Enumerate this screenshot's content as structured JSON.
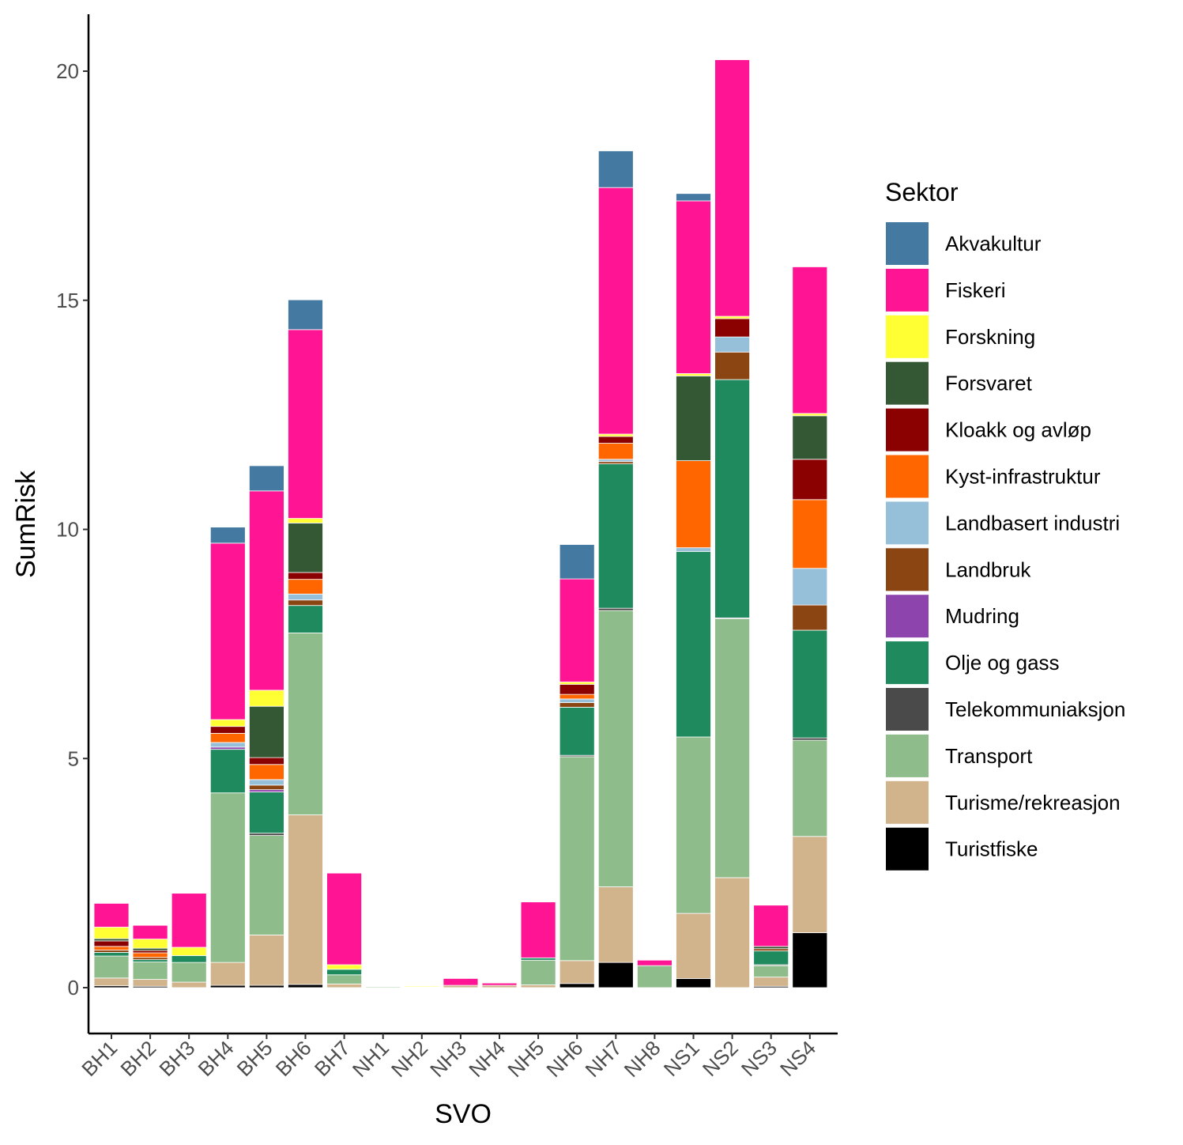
{
  "chart_data": {
    "type": "bar",
    "stacked": true,
    "title": "",
    "xlabel": "SVO",
    "ylabel": "SumRisk",
    "ylim": [
      -1,
      21.2
    ],
    "yticks": [
      0,
      5,
      10,
      15,
      20
    ],
    "legend_title": "Sektor",
    "legend_position": "right",
    "grid": false,
    "categories": [
      "BH1",
      "BH2",
      "BH3",
      "BH4",
      "BH5",
      "BH6",
      "BH7",
      "NH1",
      "NH2",
      "NH3",
      "NH4",
      "NH5",
      "NH6",
      "NH7",
      "NH8",
      "NS1",
      "NS2",
      "NS3",
      "NS4"
    ],
    "series": [
      {
        "name": "Akvakultur",
        "color": "#4479A2",
        "values": [
          0,
          0,
          0,
          0.35,
          0.55,
          0.65,
          0,
          0,
          0,
          0,
          0,
          0,
          0.75,
          0.8,
          0,
          0.16,
          0,
          0,
          0
        ]
      },
      {
        "name": "Fiskeri",
        "color": "#FF1493",
        "values": [
          0.52,
          0.3,
          1.18,
          3.85,
          4.35,
          4.12,
          2.0,
          0,
          0,
          0.15,
          0.05,
          1.22,
          2.25,
          5.38,
          0.12,
          3.77,
          5.6,
          0.9,
          3.2
        ]
      },
      {
        "name": "Forskning",
        "color": "#FFFF33",
        "values": [
          0.25,
          0.2,
          0.18,
          0.15,
          0.35,
          0.1,
          0.1,
          0,
          0.02,
          0,
          0,
          0,
          0.05,
          0.05,
          0,
          0.05,
          0.05,
          0,
          0.05
        ]
      },
      {
        "name": "Forsvaret",
        "color": "#355834",
        "values": [
          0.05,
          0.05,
          0,
          0,
          1.12,
          1.08,
          0,
          0,
          0,
          0,
          0,
          0,
          0,
          0,
          0,
          1.85,
          0,
          0.05,
          0.95
        ]
      },
      {
        "name": "Kloakk og avløp",
        "color": "#8B0000",
        "values": [
          0.12,
          0.05,
          0,
          0.15,
          0.15,
          0.15,
          0,
          0,
          0,
          0,
          0,
          0,
          0.22,
          0.15,
          0,
          0,
          0.4,
          0,
          0.88
        ]
      },
      {
        "name": "Kyst-infrastruktur",
        "color": "#FF6600",
        "values": [
          0.08,
          0.1,
          0,
          0.2,
          0.33,
          0.32,
          0,
          0,
          0,
          0,
          0,
          0,
          0.1,
          0.35,
          0,
          1.9,
          0,
          0,
          1.5
        ]
      },
      {
        "name": "Landbasert industri",
        "color": "#96C0D9",
        "values": [
          0,
          0,
          0,
          0.1,
          0.12,
          0.13,
          0,
          0,
          0,
          0,
          0,
          0,
          0.08,
          0.05,
          0,
          0.08,
          0.33,
          0,
          0.8
        ]
      },
      {
        "name": "Landbruk",
        "color": "#8B4513",
        "values": [
          0.05,
          0.05,
          0,
          0,
          0.1,
          0.12,
          0,
          0,
          0,
          0,
          0,
          0,
          0.1,
          0.05,
          0,
          0,
          0.6,
          0.05,
          0.55
        ]
      },
      {
        "name": "Mudring",
        "color": "#8E44AD",
        "values": [
          0,
          0,
          0,
          0.05,
          0.05,
          0,
          0,
          0,
          0,
          0,
          0,
          0,
          0,
          0,
          0,
          0,
          0,
          0,
          0
        ]
      },
      {
        "name": "Olje og gass",
        "color": "#1E8A5E",
        "values": [
          0.08,
          0.05,
          0.15,
          0.95,
          0.9,
          0.6,
          0.12,
          0,
          0,
          0,
          0,
          0.05,
          1.05,
          3.15,
          0,
          4.05,
          5.2,
          0.3,
          2.35
        ]
      },
      {
        "name": "Telekommuniaksjon",
        "color": "#4A4A4A",
        "values": [
          0,
          0,
          0,
          0,
          0.05,
          0,
          0,
          0,
          0,
          0,
          0,
          0,
          0.03,
          0.05,
          0,
          0,
          0.02,
          0.02,
          0.05
        ]
      },
      {
        "name": "Transport",
        "color": "#8FBC8B",
        "values": [
          0.48,
          0.38,
          0.43,
          3.7,
          2.17,
          3.97,
          0.2,
          0.02,
          0,
          0,
          0,
          0.54,
          4.45,
          6.03,
          0.48,
          3.85,
          5.65,
          0.25,
          2.1
        ]
      },
      {
        "name": "Turisme/rekreasjon",
        "color": "#D2B48C",
        "values": [
          0.17,
          0.15,
          0.12,
          0.5,
          1.1,
          3.7,
          0.08,
          0,
          0.01,
          0.05,
          0.05,
          0.06,
          0.5,
          1.65,
          0,
          1.42,
          2.4,
          0.2,
          2.1
        ]
      },
      {
        "name": "Turistfiske",
        "color": "#000000",
        "values": [
          0.04,
          0.03,
          0,
          0.05,
          0.05,
          0.07,
          0,
          0,
          0,
          0,
          0,
          0,
          0.09,
          0.55,
          0,
          0.2,
          0,
          0.03,
          1.2
        ]
      }
    ]
  }
}
